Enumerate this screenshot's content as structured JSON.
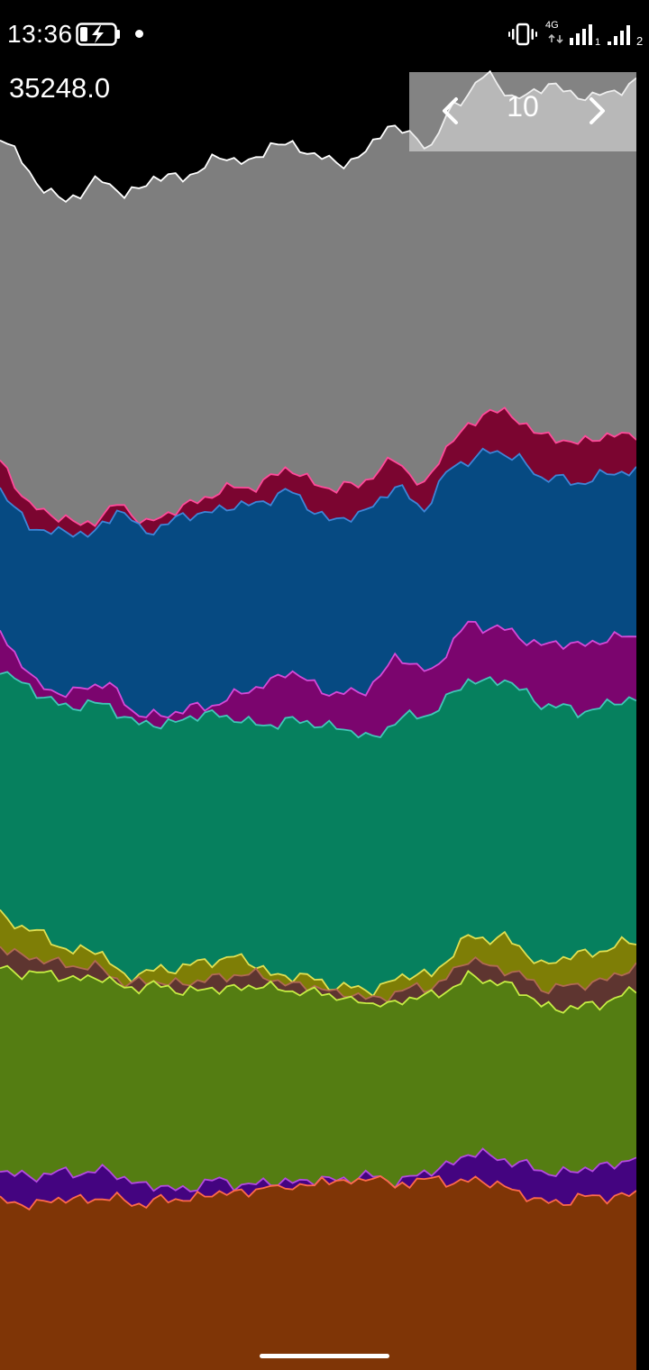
{
  "status_bar": {
    "time": "13:36",
    "network_type": "4G",
    "sim1_label": "1",
    "sim2_label": "2",
    "icons": [
      "battery-charging-icon",
      "notification-dot-icon",
      "vibrate-icon",
      "network-4g-icon",
      "signal-sim1-icon",
      "signal-sim2-icon"
    ]
  },
  "readout": {
    "value": "35248.0"
  },
  "pager": {
    "page": "10",
    "prev_icon": "chevron-left-icon",
    "next_icon": "chevron-right-icon"
  },
  "chart_data": {
    "type": "area",
    "stacked": true,
    "x_points": 88,
    "series_order_top_to_bottom": [
      "gray",
      "crimson",
      "blue",
      "purple",
      "teal",
      "olive",
      "brown",
      "green",
      "indigo",
      "orange"
    ],
    "series": [
      {
        "color": "#7e7e7e",
        "line": "#ffffff"
      },
      {
        "color": "#7b0530",
        "line": "#ff4a9a"
      },
      {
        "color": "#064a82",
        "line": "#3d86d8"
      },
      {
        "color": "#7b056e",
        "line": "#d54ad8"
      },
      {
        "color": "#06805e",
        "line": "#40c8b8"
      },
      {
        "color": "#7e7e06",
        "line": "#e0e052"
      },
      {
        "color": "#5e3530",
        "line": "#b06a52"
      },
      {
        "color": "#547d12",
        "line": "#c6ee44"
      },
      {
        "color": "#440480",
        "line": "#b44ae0"
      },
      {
        "color": "#7f3506",
        "line": "#ff6a4a"
      }
    ]
  },
  "home_indicator": "home-indicator"
}
